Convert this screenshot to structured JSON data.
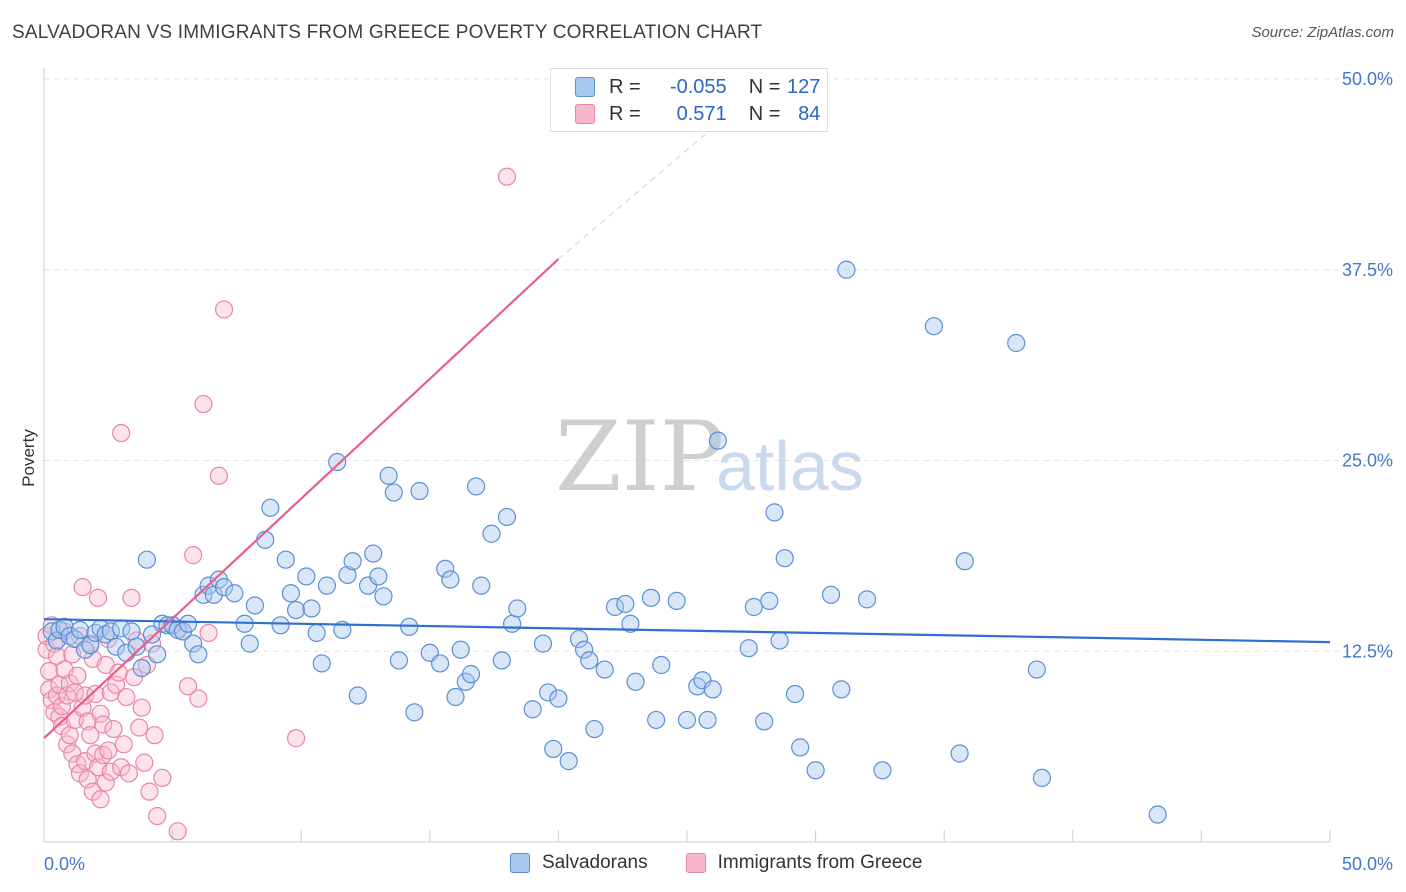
{
  "title": "SALVADORAN VS IMMIGRANTS FROM GREECE POVERTY CORRELATION CHART",
  "source": "Source: ZipAtlas.com",
  "watermark": {
    "zip": "ZIP",
    "atlas": "atlas"
  },
  "legend_stats": [
    {
      "r_label": "R =",
      "r_value": "-0.055",
      "n_label": "N =",
      "n_value": "127"
    },
    {
      "r_label": "R =",
      "r_value": "0.571",
      "n_label": "N =",
      "n_value": "84"
    }
  ],
  "colors": {
    "blue_fill": "#a9c8f0",
    "blue_stroke": "#5b8fd6",
    "blue_line": "#2f6fd0",
    "pink_fill": "#f7b8cb",
    "pink_stroke": "#e985a6",
    "pink_line": "#e8608a",
    "tick_text": "#4477cc",
    "grid": "#e6e6e6"
  },
  "chart_data": {
    "type": "scatter",
    "title": "SALVADORAN VS IMMIGRANTS FROM GREECE POVERTY CORRELATION CHART",
    "xlabel": "",
    "ylabel": "Poverty",
    "xlim": [
      0,
      50
    ],
    "ylim": [
      0,
      50
    ],
    "y_ticks": [
      {
        "value": 12.5,
        "label": "12.5%"
      },
      {
        "value": 25,
        "label": "25.0%"
      },
      {
        "value": 37.5,
        "label": "37.5%"
      },
      {
        "value": 50,
        "label": "50.0%"
      }
    ],
    "x_tick_labels": [
      {
        "value": 0,
        "label": "0.0%"
      },
      {
        "value": 50,
        "label": "50.0%"
      }
    ],
    "grid": true,
    "legend_position": "top-center",
    "series": [
      {
        "name": "Salvadorans",
        "color": "#5b8fd6",
        "trend": {
          "x0": 0,
          "y0": 14.6,
          "x1": 50,
          "y1": 13.1
        },
        "points": [
          [
            0.3,
            13.8
          ],
          [
            0.5,
            13.2
          ],
          [
            0.6,
            13.9
          ],
          [
            0.8,
            14.1
          ],
          [
            1.0,
            13.5
          ],
          [
            1.2,
            13.3
          ],
          [
            1.4,
            13.9
          ],
          [
            1.6,
            12.6
          ],
          [
            1.8,
            12.9
          ],
          [
            2.0,
            13.7
          ],
          [
            2.2,
            14.0
          ],
          [
            2.4,
            13.6
          ],
          [
            2.6,
            13.8
          ],
          [
            2.8,
            12.8
          ],
          [
            3.0,
            14.0
          ],
          [
            3.2,
            12.4
          ],
          [
            3.4,
            13.8
          ],
          [
            3.6,
            12.8
          ],
          [
            3.8,
            11.4
          ],
          [
            4.0,
            18.5
          ],
          [
            4.2,
            13.6
          ],
          [
            4.4,
            12.3
          ],
          [
            4.6,
            14.3
          ],
          [
            4.8,
            14.2
          ],
          [
            5.0,
            14.2
          ],
          [
            5.2,
            13.9
          ],
          [
            5.4,
            13.8
          ],
          [
            5.6,
            14.3
          ],
          [
            5.8,
            13.0
          ],
          [
            6.0,
            12.3
          ],
          [
            6.2,
            16.2
          ],
          [
            6.4,
            16.8
          ],
          [
            6.6,
            16.2
          ],
          [
            6.8,
            17.2
          ],
          [
            7.0,
            16.7
          ],
          [
            7.4,
            16.3
          ],
          [
            7.8,
            14.3
          ],
          [
            8.0,
            13.0
          ],
          [
            8.2,
            15.5
          ],
          [
            8.6,
            19.8
          ],
          [
            8.8,
            21.9
          ],
          [
            9.2,
            14.2
          ],
          [
            9.4,
            18.5
          ],
          [
            9.6,
            16.3
          ],
          [
            9.8,
            15.2
          ],
          [
            10.2,
            17.4
          ],
          [
            10.4,
            15.3
          ],
          [
            10.6,
            13.7
          ],
          [
            10.8,
            11.7
          ],
          [
            11.0,
            16.8
          ],
          [
            11.4,
            24.9
          ],
          [
            11.6,
            13.9
          ],
          [
            11.8,
            17.5
          ],
          [
            12.0,
            18.4
          ],
          [
            12.2,
            9.6
          ],
          [
            12.6,
            16.8
          ],
          [
            12.8,
            18.9
          ],
          [
            13.0,
            17.4
          ],
          [
            13.2,
            16.1
          ],
          [
            13.4,
            24.0
          ],
          [
            13.6,
            22.9
          ],
          [
            13.8,
            11.9
          ],
          [
            14.2,
            14.1
          ],
          [
            14.4,
            8.5
          ],
          [
            14.6,
            23.0
          ],
          [
            15.0,
            12.4
          ],
          [
            15.4,
            11.7
          ],
          [
            15.6,
            17.9
          ],
          [
            15.8,
            17.2
          ],
          [
            16.0,
            9.5
          ],
          [
            16.4,
            10.5
          ],
          [
            16.6,
            11.0
          ],
          [
            16.8,
            23.3
          ],
          [
            17.0,
            16.8
          ],
          [
            17.4,
            20.2
          ],
          [
            17.8,
            11.9
          ],
          [
            18.0,
            21.3
          ],
          [
            18.2,
            14.3
          ],
          [
            18.4,
            15.3
          ],
          [
            19.0,
            8.7
          ],
          [
            19.4,
            13.0
          ],
          [
            19.6,
            9.8
          ],
          [
            19.8,
            6.1
          ],
          [
            20.0,
            9.4
          ],
          [
            20.4,
            5.3
          ],
          [
            20.8,
            13.3
          ],
          [
            21.0,
            12.6
          ],
          [
            21.2,
            11.9
          ],
          [
            21.4,
            7.4
          ],
          [
            21.8,
            11.3
          ],
          [
            22.2,
            15.4
          ],
          [
            22.6,
            15.6
          ],
          [
            22.8,
            14.3
          ],
          [
            23.0,
            10.5
          ],
          [
            23.6,
            16.0
          ],
          [
            23.8,
            8.0
          ],
          [
            24.0,
            11.6
          ],
          [
            24.6,
            15.8
          ],
          [
            25.0,
            8.0
          ],
          [
            25.4,
            10.2
          ],
          [
            25.6,
            10.6
          ],
          [
            25.8,
            8.0
          ],
          [
            26.0,
            10.0
          ],
          [
            26.2,
            26.3
          ],
          [
            27.4,
            12.7
          ],
          [
            27.6,
            15.4
          ],
          [
            28.0,
            7.9
          ],
          [
            28.2,
            15.8
          ],
          [
            28.4,
            21.6
          ],
          [
            28.6,
            13.2
          ],
          [
            28.8,
            18.6
          ],
          [
            29.2,
            9.7
          ],
          [
            29.4,
            6.2
          ],
          [
            30.0,
            4.7
          ],
          [
            31.0,
            10.0
          ],
          [
            31.2,
            37.5
          ],
          [
            32.0,
            15.9
          ],
          [
            32.6,
            4.7
          ],
          [
            34.6,
            33.8
          ],
          [
            35.6,
            5.8
          ],
          [
            35.8,
            18.4
          ],
          [
            37.8,
            32.7
          ],
          [
            38.6,
            11.3
          ],
          [
            38.8,
            4.2
          ],
          [
            43.3,
            1.8
          ],
          [
            30.6,
            16.2
          ],
          [
            16.2,
            12.6
          ]
        ]
      },
      {
        "name": "Immigrants from Greece",
        "color": "#e985a6",
        "trend": {
          "x0": 0,
          "y0": 6.8,
          "x1": 20,
          "y1": 38.2
        },
        "trend_dashed_to": {
          "x": 26.5,
          "y": 47.5
        },
        "points": [
          [
            0.1,
            13.5
          ],
          [
            0.1,
            12.6
          ],
          [
            0.2,
            11.2
          ],
          [
            0.2,
            10.0
          ],
          [
            0.3,
            14.2
          ],
          [
            0.3,
            9.3
          ],
          [
            0.4,
            8.5
          ],
          [
            0.4,
            13.0
          ],
          [
            0.5,
            12.2
          ],
          [
            0.5,
            9.6
          ],
          [
            0.6,
            10.3
          ],
          [
            0.6,
            8.2
          ],
          [
            0.7,
            8.9
          ],
          [
            0.7,
            7.6
          ],
          [
            0.8,
            11.3
          ],
          [
            0.8,
            13.8
          ],
          [
            0.9,
            9.6
          ],
          [
            0.9,
            6.4
          ],
          [
            1.0,
            10.4
          ],
          [
            1.0,
            7.0
          ],
          [
            1.1,
            12.3
          ],
          [
            1.1,
            5.8
          ],
          [
            1.2,
            9.8
          ],
          [
            1.2,
            8.0
          ],
          [
            1.3,
            10.9
          ],
          [
            1.3,
            5.1
          ],
          [
            1.4,
            13.5
          ],
          [
            1.4,
            4.5
          ],
          [
            1.5,
            16.7
          ],
          [
            1.5,
            8.8
          ],
          [
            1.6,
            9.6
          ],
          [
            1.6,
            5.3
          ],
          [
            1.7,
            7.9
          ],
          [
            1.7,
            4.1
          ],
          [
            1.8,
            13.0
          ],
          [
            1.8,
            7.0
          ],
          [
            1.9,
            12.0
          ],
          [
            1.9,
            3.3
          ],
          [
            2.0,
            9.7
          ],
          [
            2.0,
            5.8
          ],
          [
            2.1,
            16.0
          ],
          [
            2.1,
            4.9
          ],
          [
            2.2,
            8.4
          ],
          [
            2.2,
            2.8
          ],
          [
            2.3,
            7.7
          ],
          [
            2.3,
            5.7
          ],
          [
            2.4,
            11.6
          ],
          [
            2.4,
            3.9
          ],
          [
            2.5,
            13.3
          ],
          [
            2.5,
            6.0
          ],
          [
            2.6,
            9.8
          ],
          [
            2.6,
            4.6
          ],
          [
            2.7,
            7.4
          ],
          [
            2.8,
            10.3
          ],
          [
            2.9,
            11.1
          ],
          [
            3.0,
            26.8
          ],
          [
            3.0,
            4.9
          ],
          [
            3.1,
            6.4
          ],
          [
            3.2,
            9.5
          ],
          [
            3.3,
            4.5
          ],
          [
            3.4,
            16.0
          ],
          [
            3.5,
            10.8
          ],
          [
            3.6,
            13.2
          ],
          [
            3.7,
            7.5
          ],
          [
            3.8,
            8.8
          ],
          [
            3.9,
            5.2
          ],
          [
            4.0,
            11.6
          ],
          [
            4.1,
            3.3
          ],
          [
            4.2,
            13.0
          ],
          [
            4.3,
            7.0
          ],
          [
            4.4,
            1.7
          ],
          [
            4.6,
            4.2
          ],
          [
            5.0,
            14.2
          ],
          [
            5.2,
            0.7
          ],
          [
            5.4,
            13.8
          ],
          [
            5.6,
            10.2
          ],
          [
            5.8,
            18.8
          ],
          [
            6.0,
            9.4
          ],
          [
            6.2,
            28.7
          ],
          [
            6.4,
            13.7
          ],
          [
            6.8,
            24.0
          ],
          [
            7.0,
            34.9
          ],
          [
            9.8,
            6.8
          ],
          [
            18.0,
            43.6
          ]
        ]
      }
    ]
  },
  "bottom_legend": [
    {
      "label": "Salvadorans"
    },
    {
      "label": "Immigrants from Greece"
    }
  ]
}
